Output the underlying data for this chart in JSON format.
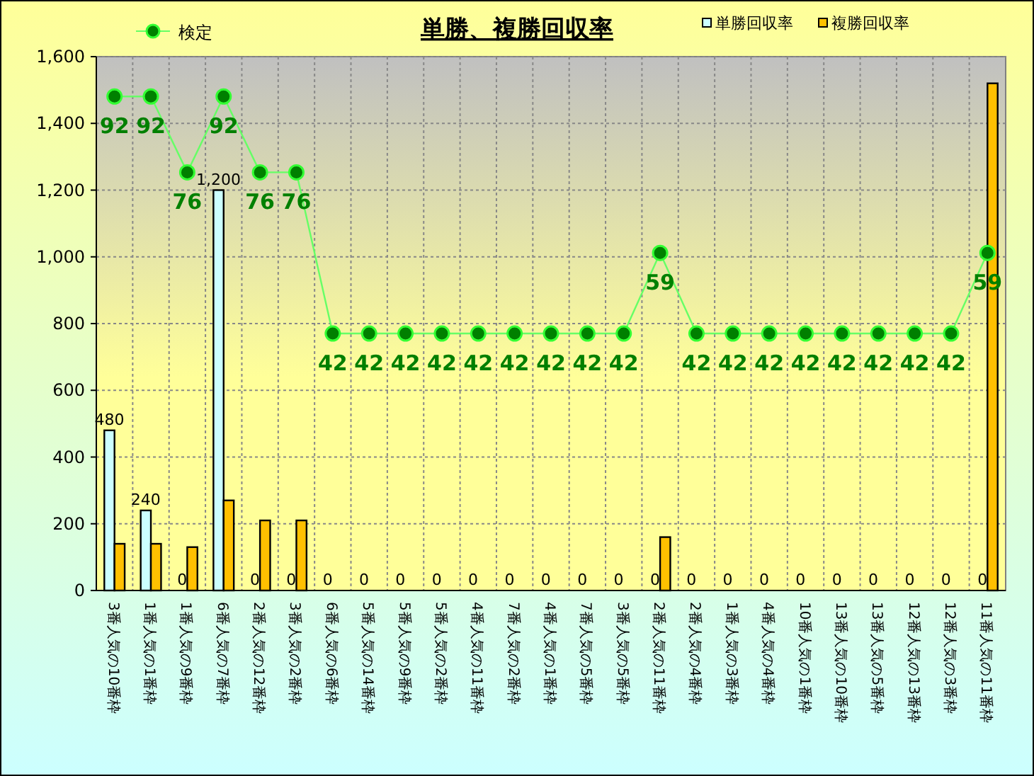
{
  "chart_data": {
    "type": "bar",
    "title": "単勝、複勝回収率",
    "categories": [
      "3番人気の10番枠",
      "1番人気の1番枠",
      "1番人気の9番枠",
      "6番人気の7番枠",
      "2番人気の12番枠",
      "3番人気の2番枠",
      "6番人気の6番枠",
      "5番人気の14番枠",
      "5番人気の9番枠",
      "5番人気の2番枠",
      "4番人気の11番枠",
      "7番人気の2番枠",
      "4番人気の1番枠",
      "7番人気の5番枠",
      "3番人気の5番枠",
      "2番人気の11番枠",
      "2番人気の4番枠",
      "1番人気の3番枠",
      "4番人気の4番枠",
      "10番人気の1番枠",
      "13番人気の10番枠",
      "13番人気の5番枠",
      "12番人気の13番枠",
      "12番人気の3番枠",
      "11番人気の11番枠"
    ],
    "series": [
      {
        "name": "単勝回収率",
        "color": "#ccffff",
        "values": [
          480,
          240,
          0,
          1200,
          0,
          0,
          0,
          0,
          0,
          0,
          0,
          0,
          0,
          0,
          0,
          0,
          0,
          0,
          0,
          0,
          0,
          0,
          0,
          0,
          0
        ],
        "value_labels": [
          "480",
          "240",
          "0",
          "1,200",
          "0",
          "0",
          "0",
          "0",
          "0",
          "0",
          "0",
          "0",
          "0",
          "0",
          "0",
          "0",
          "0",
          "0",
          "0",
          "0",
          "0",
          "0",
          "0",
          "0",
          "0"
        ]
      },
      {
        "name": "複勝回収率",
        "color": "#ffc000",
        "values": [
          140,
          140,
          130,
          270,
          210,
          210,
          0,
          0,
          0,
          0,
          0,
          0,
          0,
          0,
          0,
          160,
          0,
          0,
          0,
          0,
          0,
          0,
          0,
          0,
          1520
        ]
      },
      {
        "name": "検定",
        "type": "line",
        "axis": "y2",
        "color": "#008000",
        "values": [
          92,
          92,
          76,
          92,
          76,
          76,
          42,
          42,
          42,
          42,
          42,
          42,
          42,
          42,
          42,
          59,
          42,
          42,
          42,
          42,
          42,
          42,
          42,
          42,
          59
        ],
        "value_labels": [
          "92",
          "92",
          "76",
          "92",
          "76",
          "76",
          "42",
          "42",
          "42",
          "42",
          "42",
          "42",
          "42",
          "42",
          "42",
          "59",
          "42",
          "42",
          "42",
          "42",
          "42",
          "42",
          "42",
          "42",
          "59"
        ]
      }
    ],
    "ylim": [
      0,
      1600
    ],
    "yticks": [
      0,
      {
        "value": 200,
        "label": "200"
      },
      {
        "value": 400,
        "label": "400"
      },
      {
        "value": 600,
        "label": "600"
      },
      {
        "value": 800,
        "label": "800"
      },
      {
        "value": 1000,
        "label": "1,000"
      },
      {
        "value": 1200,
        "label": "1,200"
      },
      {
        "value": 1400,
        "label": "1,400"
      },
      {
        "value": 1600,
        "label": "1,600"
      }
    ],
    "y2lim": [
      -12.2,
      100.4
    ],
    "grid": true,
    "legend": "top",
    "marker": "circle"
  }
}
